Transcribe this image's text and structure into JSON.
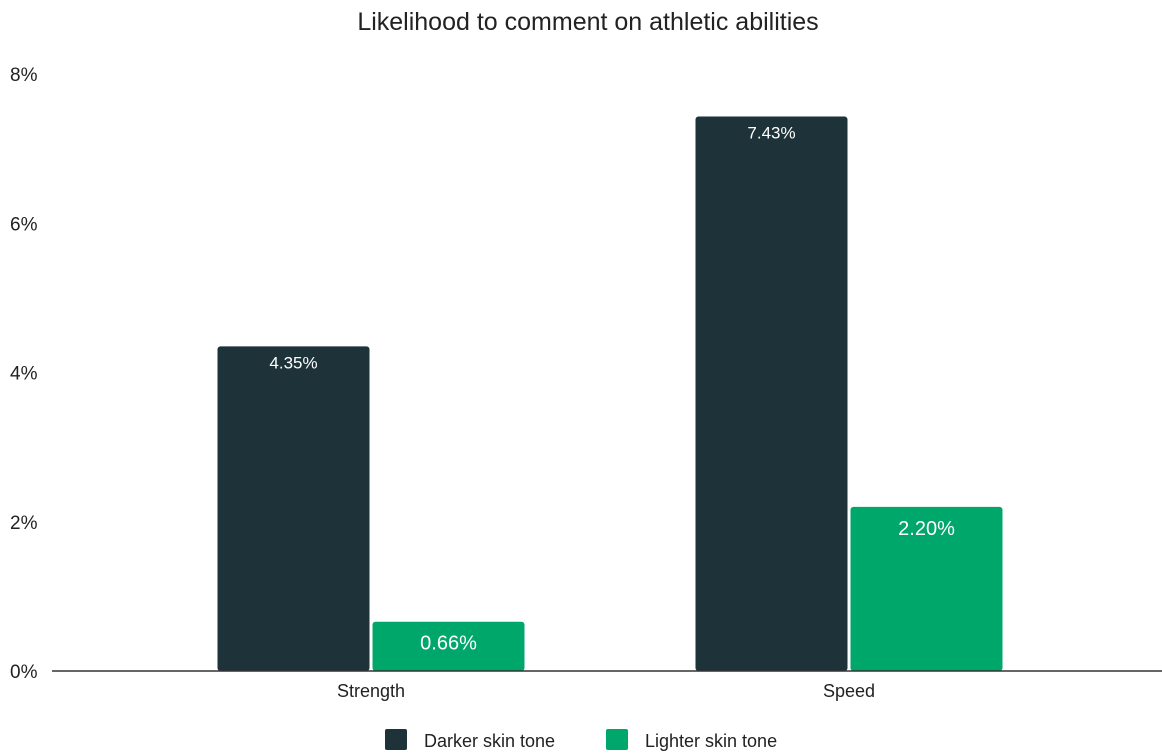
{
  "chart_data": {
    "type": "bar",
    "title": "Likelihood to comment on athletic abilities",
    "categories": [
      "Strength",
      "Speed"
    ],
    "series": [
      {
        "name": "Darker skin tone",
        "values": [
          4.35,
          7.43
        ],
        "labels": [
          "4.35%",
          "7.43%"
        ],
        "color": "#1e3239"
      },
      {
        "name": "Lighter skin tone",
        "values": [
          0.66,
          2.2
        ],
        "labels": [
          "0.66%",
          "2.20%"
        ],
        "color": "#00a76b"
      }
    ],
    "ylim": [
      0,
      8
    ],
    "yticks": [
      0,
      2,
      4,
      6,
      8
    ],
    "ytick_labels": [
      "0%",
      "2%",
      "4%",
      "6%",
      "8%"
    ],
    "grid": false,
    "legend_position": "bottom",
    "data_label_color": "#ffffff"
  }
}
